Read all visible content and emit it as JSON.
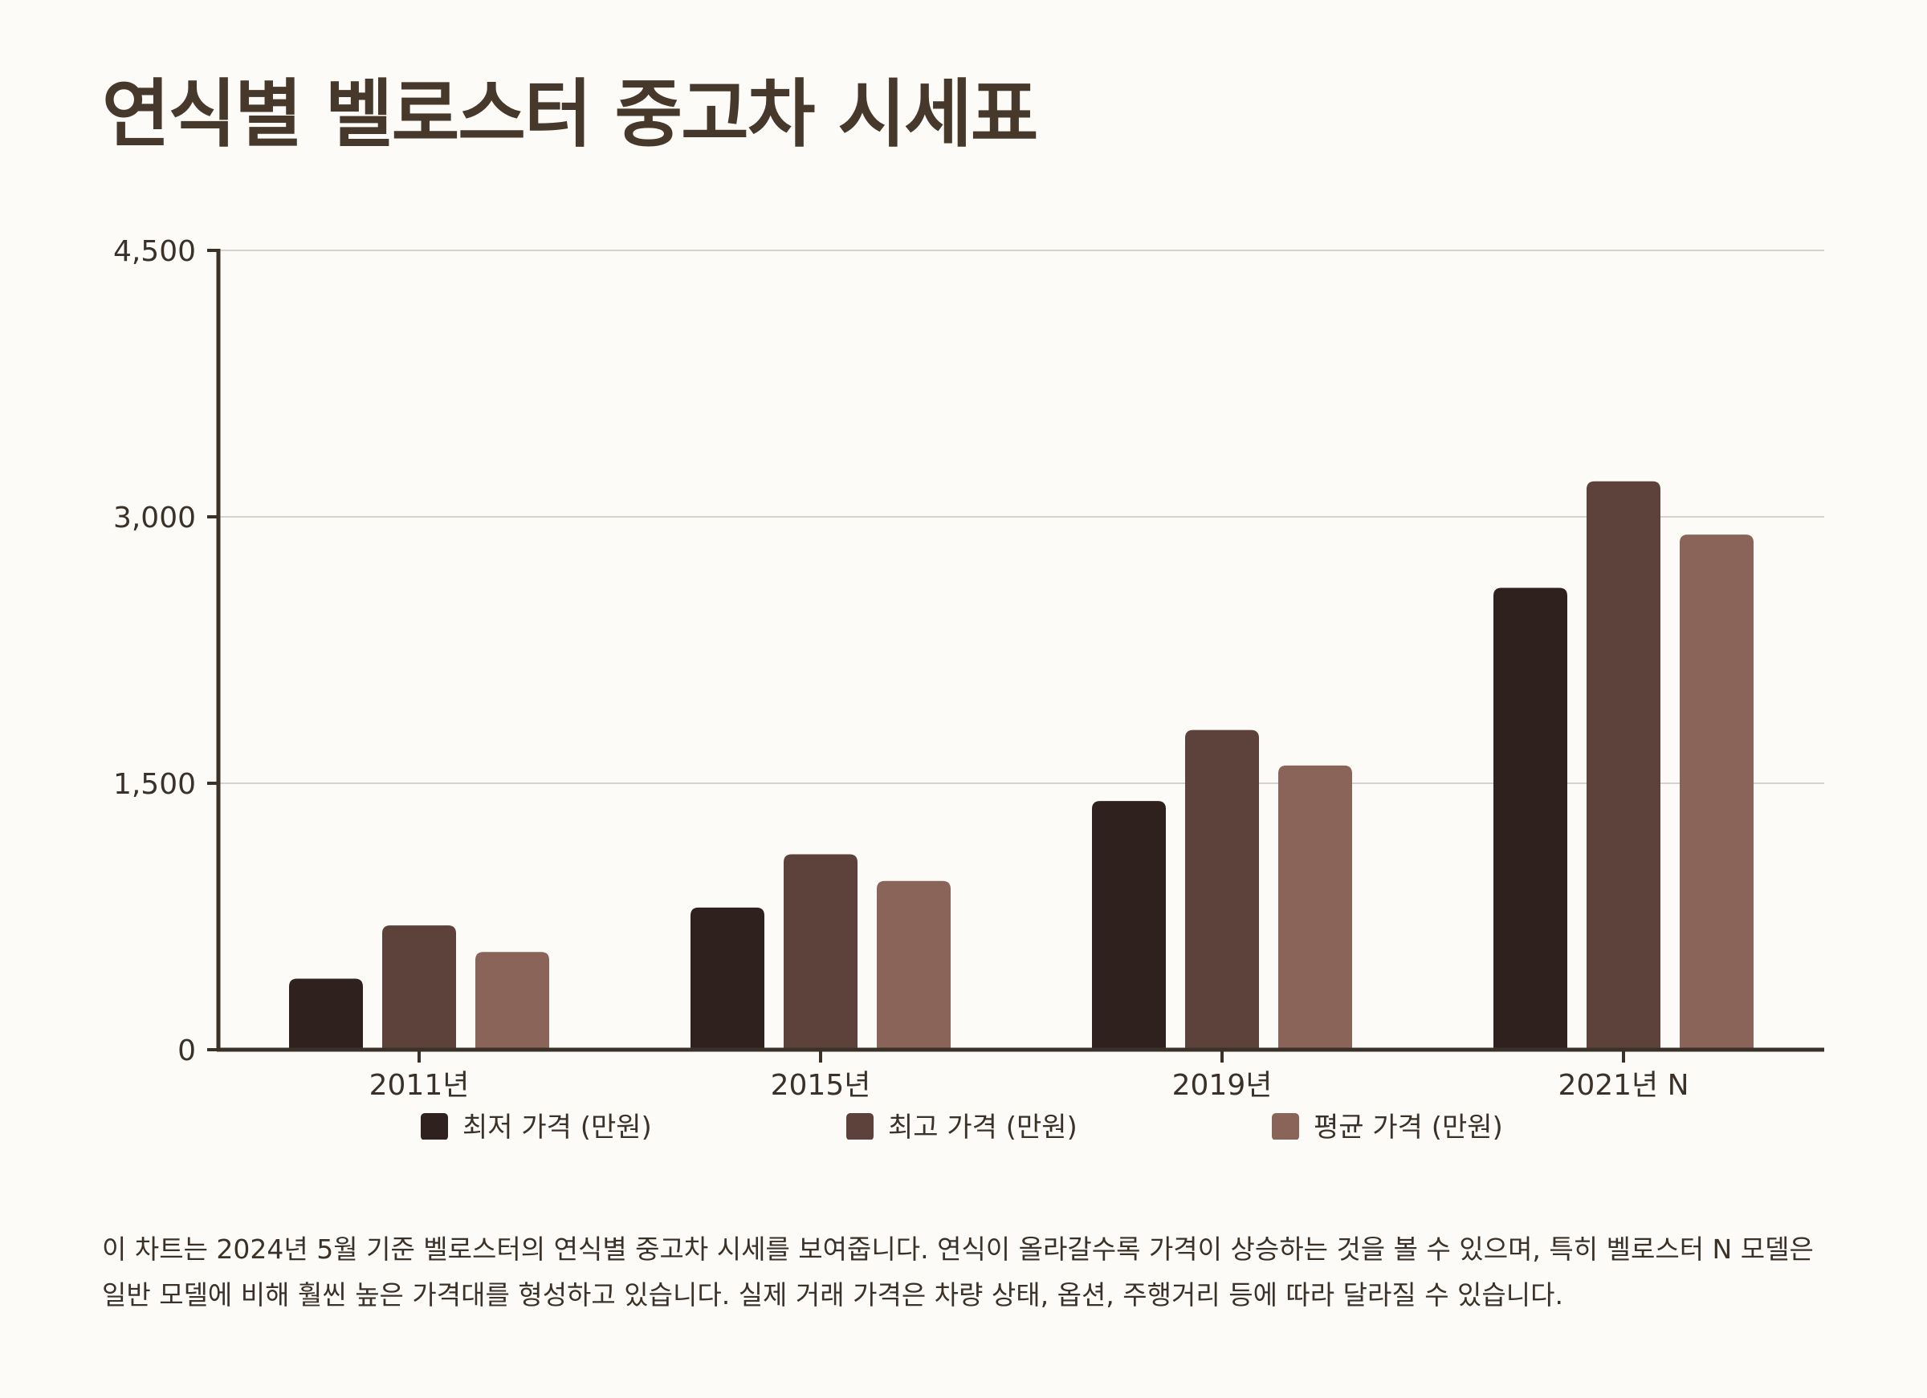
{
  "title": "연식별 벨로스터 중고차 시세표",
  "description": "이 차트는 2024년 5월 기준 벨로스터의 연식별 중고차 시세를 보여줍니다. 연식이 올라갈수록 가격이 상승하는 것을 볼 수 있으며, 특히 벨로스터 N 모델은 일반 모델에 비해 훨씬 높은 가격대를 형성하고 있습니다. 실제 거래 가격은 차량 상태, 옵션, 주행거리 등에 따라 달라질 수 있습니다.",
  "chart_data": {
    "type": "bar",
    "title": "연식별 벨로스터 중고차 시세표",
    "xlabel": "",
    "ylabel": "",
    "categories": [
      "2011년",
      "2015년",
      "2019년",
      "2021년 N"
    ],
    "series": [
      {
        "name": "최저 가격 (만원)",
        "color": "#2e211e",
        "values": [
          400,
          800,
          1400,
          2600
        ]
      },
      {
        "name": "최고 가격 (만원)",
        "color": "#5d413b",
        "values": [
          700,
          1100,
          1800,
          3200
        ]
      },
      {
        "name": "평균 가격 (만원)",
        "color": "#8a6459",
        "values": [
          550,
          950,
          1600,
          2900
        ]
      }
    ],
    "ylim": [
      0,
      4500
    ],
    "yticks": [
      0,
      1500,
      3000,
      4500
    ],
    "ytick_labels": [
      "0",
      "1,500",
      "3,000",
      "4,500"
    ],
    "grid": true,
    "legend": "bottom"
  }
}
